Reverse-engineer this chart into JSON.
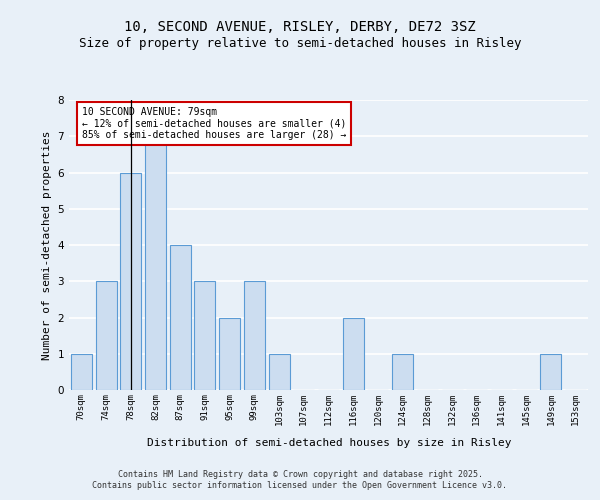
{
  "title1": "10, SECOND AVENUE, RISLEY, DERBY, DE72 3SZ",
  "title2": "Size of property relative to semi-detached houses in Risley",
  "xlabel": "Distribution of semi-detached houses by size in Risley",
  "ylabel": "Number of semi-detached properties",
  "categories": [
    "70sqm",
    "74sqm",
    "78sqm",
    "82sqm",
    "87sqm",
    "91sqm",
    "95sqm",
    "99sqm",
    "103sqm",
    "107sqm",
    "112sqm",
    "116sqm",
    "120sqm",
    "124sqm",
    "128sqm",
    "132sqm",
    "136sqm",
    "141sqm",
    "145sqm",
    "149sqm",
    "153sqm"
  ],
  "values": [
    1,
    3,
    6,
    7,
    4,
    3,
    2,
    3,
    1,
    0,
    0,
    2,
    0,
    1,
    0,
    0,
    0,
    0,
    0,
    1,
    0
  ],
  "vline_index": 2,
  "bar_color": "#ccddf0",
  "bar_edge_color": "#5b9bd5",
  "vline_color": "#000000",
  "annotation_text": "10 SECOND AVENUE: 79sqm\n← 12% of semi-detached houses are smaller (4)\n85% of semi-detached houses are larger (28) →",
  "annotation_box_color": "#ffffff",
  "annotation_box_edge": "#cc0000",
  "footer_text": "Contains HM Land Registry data © Crown copyright and database right 2025.\nContains public sector information licensed under the Open Government Licence v3.0.",
  "ylim": [
    0,
    8
  ],
  "yticks": [
    0,
    1,
    2,
    3,
    4,
    5,
    6,
    7,
    8
  ],
  "background_color": "#e8f0f8",
  "grid_color": "#ffffff",
  "title1_fontsize": 10,
  "title2_fontsize": 9,
  "ylabel_fontsize": 8,
  "xlabel_fontsize": 8,
  "tick_fontsize": 6.5,
  "annotation_fontsize": 7,
  "footer_fontsize": 6
}
